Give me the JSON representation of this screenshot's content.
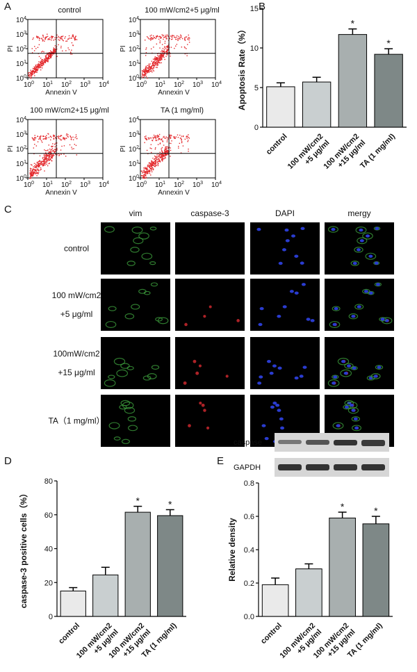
{
  "figure": {
    "panel_labels": [
      "A",
      "B",
      "C",
      "D",
      "E"
    ],
    "flow": {
      "titles": [
        "control",
        "100 mW/cm2+5 μg/ml",
        "100 mW/cm2+15 μg/ml",
        "TA (1 mg/ml)"
      ],
      "x_label": "Annexin V",
      "y_label": "PI",
      "tick_base": "10",
      "tick_exponents": [
        0,
        1,
        2,
        3,
        4
      ]
    },
    "microscopy": {
      "columns": [
        "vim",
        "caspase-3",
        "DAPI",
        "mergy"
      ],
      "rows": [
        [
          "control"
        ],
        [
          "100 mW/cm2",
          "+5 μg/ml"
        ],
        [
          "100mW/cm2",
          "+15 μg/ml"
        ],
        [
          "TA（1 mg/ml）"
        ]
      ]
    },
    "blot": {
      "labels": [
        "caspase",
        "GAPDH"
      ]
    }
  },
  "chart_data": [
    {
      "type": "bar",
      "y_label": "Apoptosis Rate（%）",
      "categories": [
        [
          "control"
        ],
        [
          "100 mW/cm2",
          "+5 μg/ml"
        ],
        [
          "100 mW/cm2",
          "+15 μg/ml"
        ],
        [
          "TA (1 mg/ml)"
        ]
      ],
      "values": [
        5.1,
        5.7,
        11.7,
        9.2
      ],
      "errors": [
        0.5,
        0.6,
        0.7,
        0.7
      ],
      "colors": [
        "#eaeaea",
        "#c9cfd0",
        "#a8afaf",
        "#7e8887"
      ],
      "significance": [
        null,
        null,
        "*",
        "*"
      ],
      "ylim": [
        0,
        15
      ],
      "yticks": [
        0,
        5,
        10,
        15
      ]
    },
    {
      "type": "bar",
      "y_label": "caspase-3 positive cells（%）",
      "categories": [
        [
          "control"
        ],
        [
          "100 mW/cm2",
          "+5 μg/ml"
        ],
        [
          "100 mW/cm2",
          "+15 μg/ml"
        ],
        [
          "TA (1 mg/ml)"
        ]
      ],
      "values": [
        15,
        24.5,
        61.5,
        59.5
      ],
      "errors": [
        2,
        4.5,
        3.5,
        3.5
      ],
      "colors": [
        "#eaeaea",
        "#c9cfd0",
        "#a8afaf",
        "#7e8887"
      ],
      "significance": [
        null,
        null,
        "*",
        "*"
      ],
      "ylim": [
        0,
        80
      ],
      "yticks": [
        0,
        20,
        40,
        60,
        80
      ]
    },
    {
      "type": "bar",
      "y_label": "Relative density",
      "categories": [
        [
          "control"
        ],
        [
          "100 mW/cm2",
          "+5 μg/ml"
        ],
        [
          "100 mW/cm2",
          "+15 μg/ml"
        ],
        [
          "TA (1 mg/ml)"
        ]
      ],
      "values": [
        0.19,
        0.285,
        0.59,
        0.555
      ],
      "errors": [
        0.04,
        0.03,
        0.035,
        0.045
      ],
      "colors": [
        "#eaeaea",
        "#c9cfd0",
        "#a8afaf",
        "#7e8887"
      ],
      "significance": [
        null,
        null,
        "*",
        "*"
      ],
      "ylim": [
        0,
        0.8
      ],
      "yticks": [
        {
          "value": 0,
          "label": "0.0"
        },
        0.2,
        0.4,
        0.6,
        0.8
      ]
    }
  ]
}
